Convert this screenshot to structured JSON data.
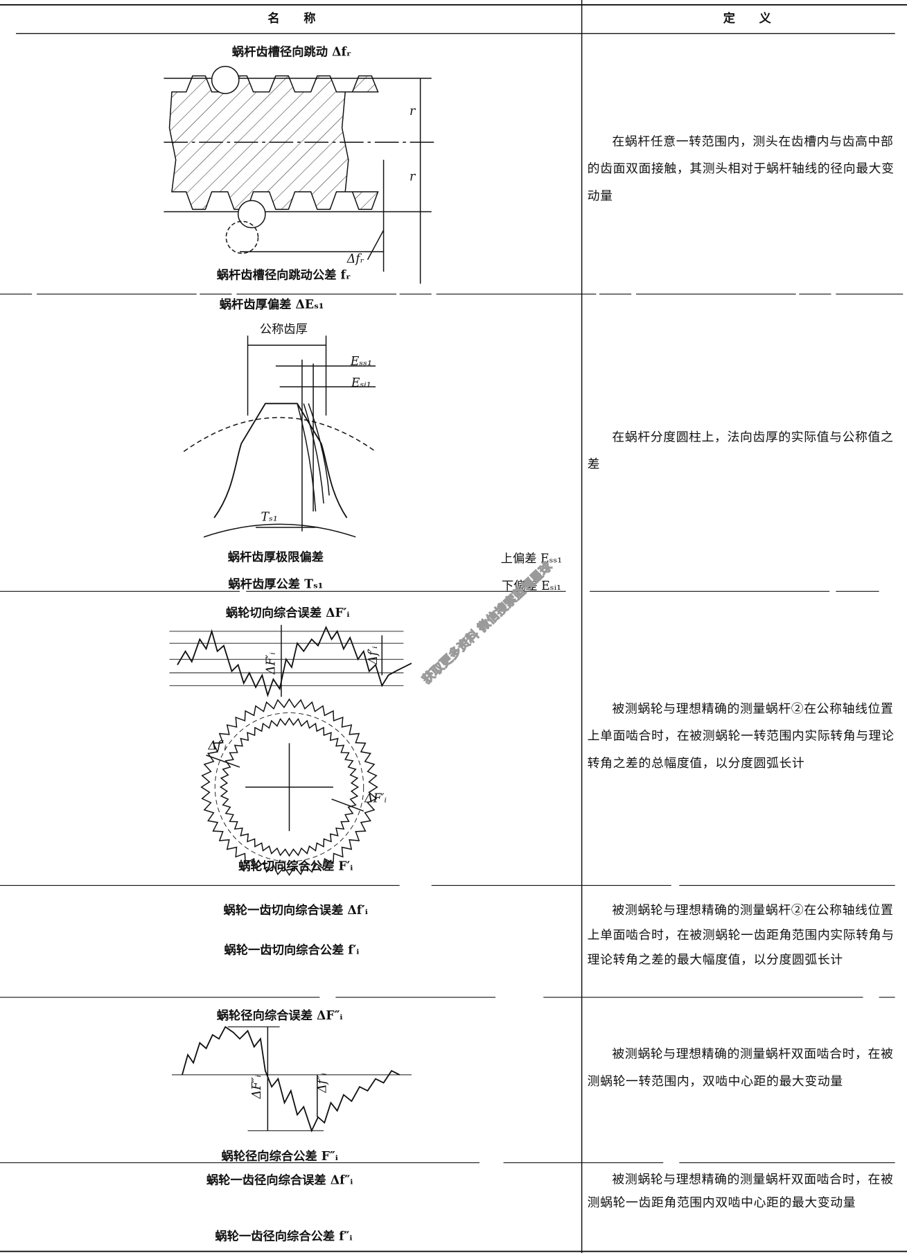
{
  "header": {
    "name": "名　　称",
    "definition": "定　　义"
  },
  "rows": [
    {
      "name": "蜗杆齿槽径向跳动 Δfᵣ",
      "labels": [
        "r",
        "r",
        "Δfᵣ"
      ],
      "tolerance": "蜗杆齿槽径向跳动公差 fᵣ",
      "definition": "在蜗杆任意一转范围内，测头在齿槽内与齿高中部的齿面双面接触，其测头相对于蜗杆轴线的径向最大变动量"
    },
    {
      "name": "蜗杆齿厚偏差 ΔEₛ₁",
      "labels": [
        "公称齿厚",
        "Eₛₛ₁",
        "Eₛᵢ₁",
        "Tₛ₁"
      ],
      "limit": "蜗杆齿厚极限偏差",
      "tolerance": "蜗杆齿厚公差 Tₛ₁",
      "deviations": [
        "上偏差 Eₛₛ₁",
        "下偏差 Eₛᵢ₁"
      ],
      "definition": "在蜗杆分度圆柱上，法向齿厚的实际值与公称值之差"
    },
    {
      "name": "蜗轮切向综合误差 ΔF′ᵢ",
      "labels": [
        "ΔF′ᵢ",
        "Δf′ᵢ",
        "Δf′ᵢ",
        "ΔF′ᵢ"
      ],
      "tolerance": "蜗轮切向综合公差 F′ᵢ",
      "definition": "被测蜗轮与理想精确的测量蜗杆②在公称轴线位置上单面啮合时，在被测蜗轮一转范围内实际转角与理论转角之差的总幅度值，以分度圆弧长计"
    },
    {
      "name": "蜗轮一齿切向综合误差 Δf′ᵢ",
      "tolerance": "蜗轮一齿切向综合公差 f′ᵢ",
      "definition": "被测蜗轮与理想精确的测量蜗杆②在公称轴线位置上单面啮合时，在被测蜗轮一齿距角范围内实际转角与理论转角之差的最大幅度值，以分度圆弧长计"
    },
    {
      "name": "蜗轮径向综合误差 ΔF″ᵢ",
      "labels": [
        "ΔF″ᵢ",
        "Δf″ᵢ"
      ],
      "tolerance": "蜗轮径向综合公差 F″ᵢ",
      "definition": "被测蜗轮与理想精确的测量蜗杆双面啮合时，在被测蜗轮一转范围内，双啮中心距的最大变动量"
    },
    {
      "name": "蜗轮一齿径向综合误差 Δf″ᵢ",
      "tolerance": "蜗轮一齿径向综合公差 f″ᵢ",
      "definition": "被测蜗轮与理想精确的测量蜗杆双面啮合时，在被测蜗轮一齿距角范围内双啮中心距的最大变动量"
    }
  ],
  "watermark": "获取更多资料 微信搜索蓝领星球"
}
